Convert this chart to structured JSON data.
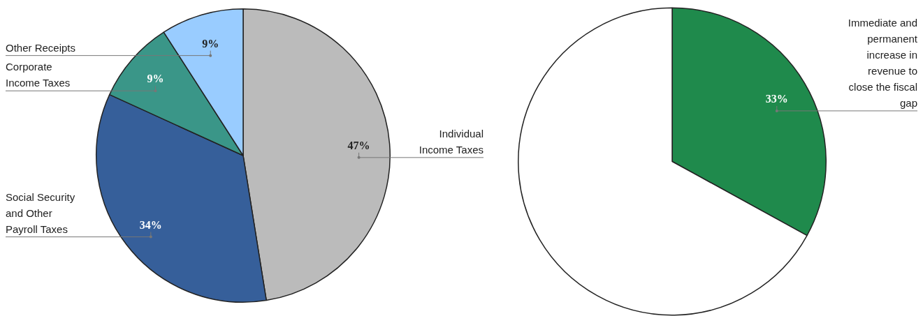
{
  "chart_data": [
    {
      "type": "pie",
      "categories": [
        "Individual Income Taxes",
        "Social Security and Other Payroll Taxes",
        "Corporate Income Taxes",
        "Other Receipts"
      ],
      "values": [
        47,
        34,
        9,
        9
      ],
      "colors": [
        "#bbbbbb",
        "#365f9a",
        "#3a9688",
        "#99ccff"
      ],
      "value_labels": [
        "47%",
        "34%",
        "9%",
        "9%"
      ],
      "legend": false
    },
    {
      "type": "pie",
      "categories": [
        "Immediate and permanent increase in revenue to close the fiscal gap",
        null
      ],
      "values": [
        33,
        67
      ],
      "colors": [
        "#1f8a4c",
        "#ffffff"
      ],
      "value_labels": [
        "33%",
        null
      ],
      "legend": false
    }
  ]
}
